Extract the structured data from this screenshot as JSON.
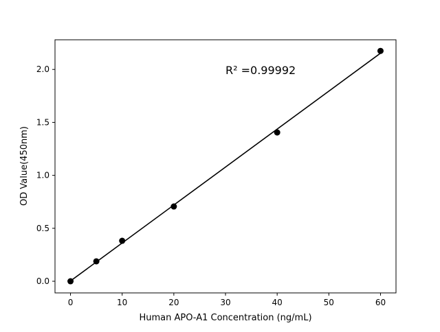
{
  "chart_data": {
    "type": "scatter",
    "title": "",
    "xlabel": "Human APO-A1 Concentration (ng/mL)",
    "ylabel": "OD Value(450nm)",
    "xlim": [
      -3,
      63
    ],
    "ylim": [
      -0.11,
      2.28
    ],
    "xticks": [
      0,
      10,
      20,
      30,
      40,
      50,
      60
    ],
    "xtick_labels": [
      "0",
      "10",
      "20",
      "30",
      "40",
      "50",
      "60"
    ],
    "yticks": [
      0.0,
      0.5,
      1.0,
      1.5,
      2.0
    ],
    "ytick_labels": [
      "0.0",
      "0.5",
      "1.0",
      "1.5",
      "2.0"
    ],
    "grid": false,
    "series": [
      {
        "x": [
          0,
          5,
          10,
          20,
          40,
          60
        ],
        "y": [
          0.0,
          0.188,
          0.382,
          0.706,
          1.405,
          2.175
        ],
        "color": "#000000",
        "marker": "circle",
        "fit_line": true
      }
    ],
    "annotation": "R² =0.99992"
  }
}
